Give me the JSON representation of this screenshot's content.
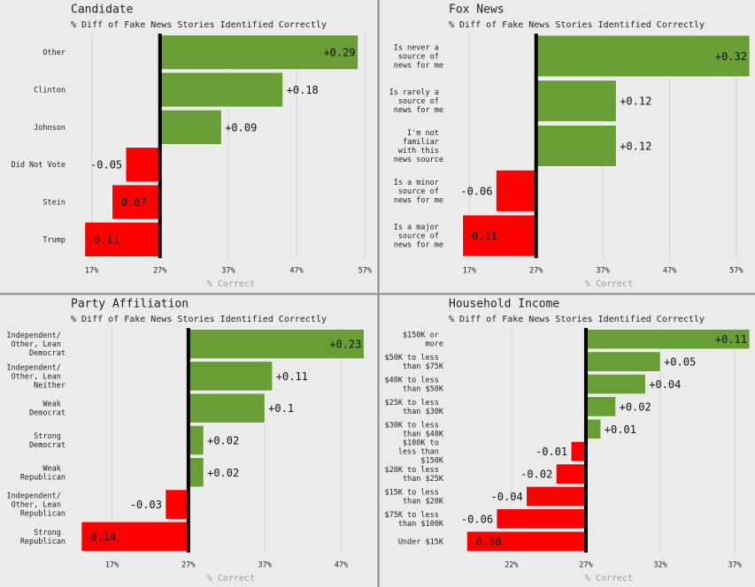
{
  "chart_data": [
    {
      "type": "bar",
      "title": "Candidate",
      "subtitle": "% Diff of Fake News Stories Identified Correctly",
      "x_label": "% Correct",
      "categories": [
        "Other",
        "Clinton",
        "Johnson",
        "Did Not Vote",
        "Stein",
        "Trump"
      ],
      "values": [
        0.29,
        0.18,
        0.09,
        -0.05,
        -0.07,
        -0.11
      ],
      "value_labels": [
        "+0.29",
        "+0.18",
        "+0.09",
        "-0.05",
        "-0.07",
        "-0.11"
      ],
      "baseline": 0.27,
      "positive_color": "#699e36",
      "negative_color": "#ff0000",
      "grid": true,
      "xlim": [
        0.155,
        0.58
      ],
      "xticks": [
        {
          "value": 0.17,
          "label": "17%"
        },
        {
          "value": 0.27,
          "label": "27%"
        },
        {
          "value": 0.37,
          "label": "37%"
        },
        {
          "value": 0.47,
          "label": "47%"
        },
        {
          "value": 0.57,
          "label": "57%"
        }
      ]
    },
    {
      "type": "bar",
      "title": "Fox News",
      "subtitle": "% Diff of Fake News Stories Identified Correctly",
      "x_label": "% Correct",
      "categories": [
        "Is never a source of news for me",
        "Is rarely a source of news for me",
        "I'm not familiar with this news source",
        "Is a minor source of news for me",
        "Is a major source of news for me"
      ],
      "values": [
        0.32,
        0.12,
        0.12,
        -0.06,
        -0.11
      ],
      "value_labels": [
        "+0.32",
        "+0.12",
        "+0.12",
        "-0.06",
        "-0.11"
      ],
      "baseline": 0.27,
      "positive_color": "#699e36",
      "negative_color": "#ff0000",
      "grid": true,
      "xlim": [
        0.155,
        0.59
      ],
      "xticks": [
        {
          "value": 0.17,
          "label": "17%"
        },
        {
          "value": 0.27,
          "label": "27%"
        },
        {
          "value": 0.37,
          "label": "37%"
        },
        {
          "value": 0.47,
          "label": "47%"
        },
        {
          "value": 0.57,
          "label": "57%"
        }
      ]
    },
    {
      "type": "bar",
      "title": "Party Affiliation",
      "subtitle": "% Diff of Fake News Stories Identified Correctly",
      "x_label": "% Correct",
      "categories": [
        "Independent/ Other, Lean Democrat",
        "Independent/ Other, Lean Neither",
        "Weak Democrat",
        "Strong Democrat",
        "Weak Republican",
        "Independent/ Other, Lean Republican",
        "Strong Republican"
      ],
      "values": [
        0.23,
        0.11,
        0.1,
        0.02,
        0.02,
        -0.03,
        -0.14
      ],
      "value_labels": [
        "+0.23",
        "+0.11",
        "+0.1",
        "+0.02",
        "+0.02",
        "-0.03",
        "-0.14"
      ],
      "baseline": 0.27,
      "positive_color": "#699e36",
      "negative_color": "#ff0000",
      "grid": true,
      "xlim": [
        0.13,
        0.51
      ],
      "xticks": [
        {
          "value": 0.17,
          "label": "17%"
        },
        {
          "value": 0.27,
          "label": "27%"
        },
        {
          "value": 0.37,
          "label": "37%"
        },
        {
          "value": 0.47,
          "label": "47%"
        }
      ]
    },
    {
      "type": "bar",
      "title": "Household Income",
      "subtitle": "% Diff of Fake News Stories Identified Correctly",
      "x_label": "% Correct",
      "categories": [
        "$150K or more",
        "$50K to less than $75K",
        "$40K to less than $50K",
        "$25K to less than $30K",
        "$30K to less than $40K",
        "$100K to less than $150K",
        "$20K to less than $25K",
        "$15K to less than $20K",
        "$75K to less than $100K",
        "Under $15K"
      ],
      "values": [
        0.11,
        0.05,
        0.04,
        0.02,
        0.01,
        -0.01,
        -0.02,
        -0.04,
        -0.06,
        -0.08
      ],
      "value_labels": [
        "+0.11",
        "+0.05",
        "+0.04",
        "+0.02",
        "+0.01",
        "-0.01",
        "-0.02",
        "-0.04",
        "-0.06",
        "-0.08"
      ],
      "baseline": 0.27,
      "positive_color": "#699e36",
      "negative_color": "#ff0000",
      "grid": true,
      "xlim": [
        0.185,
        0.38
      ],
      "xticks": [
        {
          "value": 0.22,
          "label": "22%"
        },
        {
          "value": 0.27,
          "label": "27%"
        },
        {
          "value": 0.32,
          "label": "32%"
        },
        {
          "value": 0.37,
          "label": "37%"
        }
      ]
    }
  ]
}
